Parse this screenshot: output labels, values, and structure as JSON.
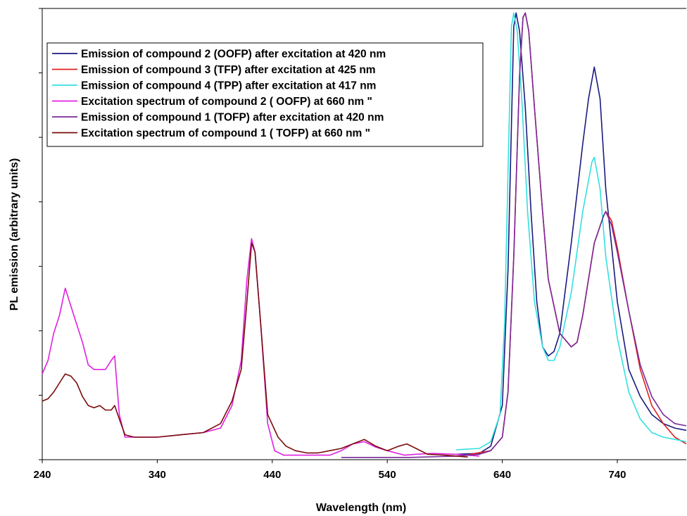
{
  "chart_data": {
    "type": "line",
    "title": "",
    "xlabel": "Wavelength (nm)",
    "ylabel": "PL emission (arbitrary units)",
    "xlim": [
      240,
      800
    ],
    "ylim": [
      0,
      100
    ],
    "xticks": [
      240,
      340,
      440,
      540,
      640,
      740
    ],
    "ytick_count": 8,
    "y_tick_labels_shown": false,
    "legend_position": "top-left",
    "grid": false,
    "series": [
      {
        "name": "Emission of compound 2 (OOFP) after excitation at 420 nm",
        "color": "#1a1a80",
        "points": [
          [
            600,
            1.2
          ],
          [
            620,
            1.4
          ],
          [
            630,
            3
          ],
          [
            640,
            12
          ],
          [
            645,
            42
          ],
          [
            650,
            96
          ],
          [
            652,
            99
          ],
          [
            655,
            95
          ],
          [
            660,
            78
          ],
          [
            665,
            55
          ],
          [
            670,
            35
          ],
          [
            675,
            25
          ],
          [
            680,
            23
          ],
          [
            685,
            24
          ],
          [
            690,
            28
          ],
          [
            700,
            48
          ],
          [
            710,
            70
          ],
          [
            715,
            80
          ],
          [
            720,
            87
          ],
          [
            725,
            80
          ],
          [
            730,
            60
          ],
          [
            740,
            35
          ],
          [
            750,
            20
          ],
          [
            760,
            14
          ],
          [
            770,
            10
          ],
          [
            780,
            8
          ],
          [
            790,
            7
          ],
          [
            800,
            6.5
          ]
        ]
      },
      {
        "name": "Emission of compound 3 (TFP) after excitation at 425 nm",
        "color": "#e02020",
        "points": [
          [
            610,
            1.1
          ],
          [
            630,
            2
          ],
          [
            640,
            5
          ],
          [
            645,
            15
          ],
          [
            650,
            45
          ],
          [
            655,
            85
          ],
          [
            658,
            98
          ],
          [
            660,
            99
          ],
          [
            663,
            95
          ],
          [
            668,
            78
          ],
          [
            675,
            55
          ],
          [
            680,
            40
          ],
          [
            690,
            28
          ],
          [
            700,
            25
          ],
          [
            705,
            26
          ],
          [
            710,
            32
          ],
          [
            720,
            48
          ],
          [
            728,
            54
          ],
          [
            730,
            55
          ],
          [
            735,
            53
          ],
          [
            740,
            47
          ],
          [
            750,
            33
          ],
          [
            760,
            20
          ],
          [
            770,
            12
          ],
          [
            780,
            8
          ],
          [
            790,
            5
          ],
          [
            800,
            3.5
          ]
        ]
      },
      {
        "name": "Emission of compound 4 (TPP) after excitation at 417 nm",
        "color": "#33e0e0",
        "points": [
          [
            600,
            2.2
          ],
          [
            620,
            2.5
          ],
          [
            630,
            4
          ],
          [
            638,
            10
          ],
          [
            642,
            30
          ],
          [
            646,
            75
          ],
          [
            648,
            96
          ],
          [
            650,
            99
          ],
          [
            653,
            95
          ],
          [
            657,
            80
          ],
          [
            662,
            55
          ],
          [
            668,
            35
          ],
          [
            675,
            25
          ],
          [
            680,
            22
          ],
          [
            685,
            22
          ],
          [
            690,
            25
          ],
          [
            700,
            37
          ],
          [
            710,
            55
          ],
          [
            718,
            66
          ],
          [
            720,
            67
          ],
          [
            725,
            60
          ],
          [
            730,
            45
          ],
          [
            740,
            27
          ],
          [
            750,
            15
          ],
          [
            760,
            9
          ],
          [
            770,
            6
          ],
          [
            780,
            5
          ],
          [
            790,
            4.5
          ],
          [
            800,
            4
          ]
        ]
      },
      {
        "name": "Excitation spectrum  of compound 2 ( OOFP) at 660 nm \"",
        "color": "#e020e0",
        "points": [
          [
            240,
            19
          ],
          [
            245,
            22
          ],
          [
            250,
            28
          ],
          [
            255,
            32
          ],
          [
            260,
            38
          ],
          [
            265,
            34
          ],
          [
            270,
            30
          ],
          [
            275,
            26
          ],
          [
            280,
            21
          ],
          [
            285,
            20
          ],
          [
            290,
            20
          ],
          [
            295,
            20
          ],
          [
            300,
            22
          ],
          [
            303,
            23
          ],
          [
            307,
            10
          ],
          [
            312,
            5
          ],
          [
            320,
            5
          ],
          [
            340,
            5
          ],
          [
            360,
            5.5
          ],
          [
            380,
            6
          ],
          [
            395,
            7
          ],
          [
            405,
            12
          ],
          [
            413,
            22
          ],
          [
            418,
            40
          ],
          [
            422,
            49
          ],
          [
            425,
            46
          ],
          [
            430,
            30
          ],
          [
            436,
            8
          ],
          [
            442,
            2
          ],
          [
            450,
            1
          ],
          [
            470,
            1
          ],
          [
            490,
            1
          ],
          [
            500,
            2
          ],
          [
            510,
            3.5
          ],
          [
            520,
            4
          ],
          [
            530,
            2.8
          ],
          [
            540,
            2
          ],
          [
            555,
            1
          ],
          [
            565,
            1.2
          ],
          [
            580,
            1.4
          ],
          [
            600,
            1.2
          ],
          [
            620,
            0.8
          ]
        ]
      },
      {
        "name": "Emission of compound 1 (TOFP) after excitation at 420 nm",
        "color": "#7a2a9a",
        "points": [
          [
            500,
            0.5
          ],
          [
            560,
            0.5
          ],
          [
            600,
            0.8
          ],
          [
            620,
            1.2
          ],
          [
            630,
            2
          ],
          [
            640,
            5
          ],
          [
            645,
            15
          ],
          [
            650,
            45
          ],
          [
            655,
            85
          ],
          [
            658,
            98
          ],
          [
            660,
            99
          ],
          [
            663,
            95
          ],
          [
            668,
            78
          ],
          [
            675,
            55
          ],
          [
            680,
            40
          ],
          [
            690,
            28
          ],
          [
            700,
            25
          ],
          [
            705,
            26
          ],
          [
            710,
            32
          ],
          [
            720,
            48
          ],
          [
            728,
            54
          ],
          [
            730,
            55
          ],
          [
            735,
            52
          ],
          [
            740,
            46
          ],
          [
            750,
            33
          ],
          [
            760,
            21
          ],
          [
            770,
            14
          ],
          [
            780,
            10
          ],
          [
            790,
            8
          ],
          [
            800,
            7.5
          ]
        ]
      },
      {
        "name": "Excitation spectrum  of compound 1 ( TOFP) at 660 nm \"",
        "color": "#7a0c0c",
        "points": [
          [
            240,
            13
          ],
          [
            245,
            13.5
          ],
          [
            250,
            15
          ],
          [
            255,
            17
          ],
          [
            260,
            19
          ],
          [
            265,
            18.5
          ],
          [
            270,
            17
          ],
          [
            275,
            14
          ],
          [
            280,
            12
          ],
          [
            285,
            11.5
          ],
          [
            290,
            12
          ],
          [
            295,
            11
          ],
          [
            300,
            11
          ],
          [
            303,
            12
          ],
          [
            307,
            9
          ],
          [
            312,
            5.5
          ],
          [
            320,
            5
          ],
          [
            340,
            5
          ],
          [
            360,
            5.5
          ],
          [
            380,
            6
          ],
          [
            395,
            8
          ],
          [
            405,
            13
          ],
          [
            413,
            20
          ],
          [
            418,
            35
          ],
          [
            422,
            48
          ],
          [
            425,
            46
          ],
          [
            430,
            30
          ],
          [
            436,
            10
          ],
          [
            445,
            5
          ],
          [
            452,
            3
          ],
          [
            460,
            2
          ],
          [
            470,
            1.5
          ],
          [
            480,
            1.5
          ],
          [
            490,
            2
          ],
          [
            500,
            2.5
          ],
          [
            510,
            3.5
          ],
          [
            520,
            4.5
          ],
          [
            530,
            3
          ],
          [
            540,
            2
          ],
          [
            550,
            3
          ],
          [
            557,
            3.5
          ],
          [
            565,
            2.5
          ],
          [
            575,
            1.2
          ],
          [
            590,
            1
          ],
          [
            610,
            0.6
          ]
        ]
      }
    ]
  }
}
